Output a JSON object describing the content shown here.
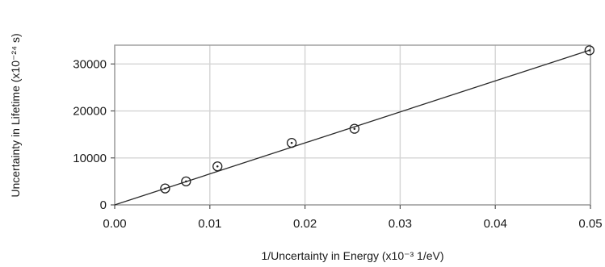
{
  "chart_data": {
    "type": "scatter",
    "xlabel": "1/Uncertainty in Energy (x10⁻³ 1/eV)",
    "ylabel": "Uncertainty in Lifetime (x10⁻²⁴ s)",
    "xlim": [
      0,
      0.05
    ],
    "ylim": [
      0,
      34000
    ],
    "x_ticks": [
      "0.00",
      "0.01",
      "0.02",
      "0.03",
      "0.04",
      "0.05"
    ],
    "y_ticks": [
      "0",
      "10000",
      "20000",
      "30000"
    ],
    "grid": true,
    "series": [
      {
        "points": [
          {
            "x": 0.0053,
            "y": 3500
          },
          {
            "x": 0.0075,
            "y": 5000
          },
          {
            "x": 0.0108,
            "y": 8200
          },
          {
            "x": 0.0186,
            "y": 13200
          },
          {
            "x": 0.0252,
            "y": 16200
          },
          {
            "x": 0.0499,
            "y": 32900
          }
        ]
      }
    ],
    "fit_line": {
      "x": [
        0,
        0.05
      ],
      "y": [
        0,
        33000
      ]
    }
  }
}
